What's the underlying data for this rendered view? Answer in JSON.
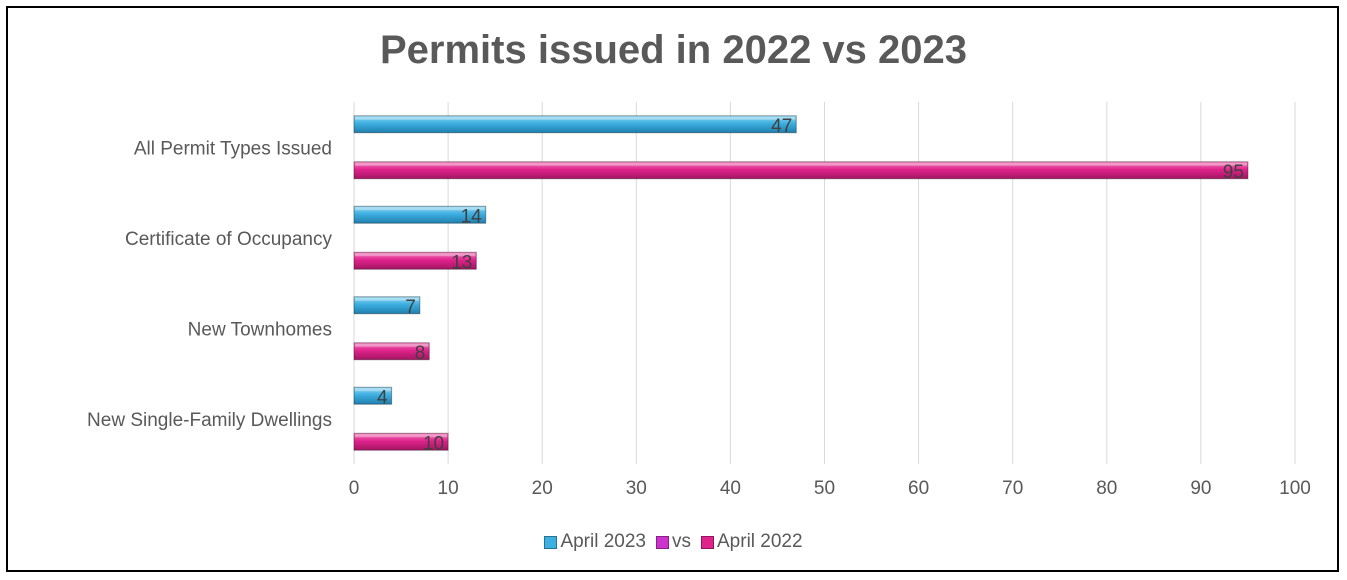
{
  "chart_data": {
    "type": "bar",
    "orientation": "horizontal",
    "title": "Permits issued in 2022 vs 2023",
    "categories": [
      "All Permit Types Issued",
      "Certificate of Occupancy",
      "New Townhomes",
      "New Single-Family Dwellings"
    ],
    "series": [
      {
        "name": "April 2023",
        "values": [
          47,
          14,
          7,
          4
        ],
        "color": "#3DAFE0"
      },
      {
        "name": "April 2022",
        "values": [
          95,
          13,
          8,
          10
        ],
        "color": "#E0238C"
      }
    ],
    "legend": [
      {
        "name": "April 2023",
        "color": "#3DAFE0"
      },
      {
        "name": "vs",
        "color": "#CC33CC"
      },
      {
        "name": "April 2022",
        "color": "#E0238C"
      }
    ],
    "xlim": [
      0,
      100
    ],
    "xticks": [
      0,
      10,
      20,
      30,
      40,
      50,
      60,
      70,
      80,
      90,
      100
    ],
    "grid": true,
    "legend_position": "bottom",
    "data_labels": true
  }
}
